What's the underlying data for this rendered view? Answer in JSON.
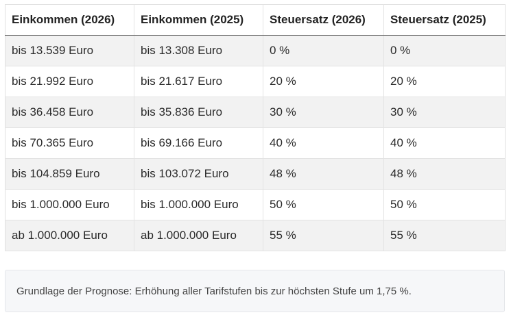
{
  "table": {
    "headers": [
      "Einkommen (2026)",
      "Einkommen (2025)",
      "Steuersatz (2026)",
      "Steuersatz (2025)"
    ],
    "rows": [
      [
        "bis 13.539 Euro",
        "bis 13.308 Euro",
        "0 %",
        "0 %"
      ],
      [
        "bis 21.992 Euro",
        "bis 21.617 Euro",
        "20 %",
        "20 %"
      ],
      [
        "bis 36.458 Euro",
        "bis 35.836 Euro",
        "30 %",
        "30 %"
      ],
      [
        "bis 70.365 Euro",
        "bis 69.166 Euro",
        "40 %",
        "40 %"
      ],
      [
        "bis 104.859 Euro",
        "bis 103.072 Euro",
        "48 %",
        "48 %"
      ],
      [
        "bis 1.000.000 Euro",
        "bis 1.000.000 Euro",
        "50 %",
        "50 %"
      ],
      [
        "ab 1.000.000 Euro",
        "ab 1.000.000 Euro",
        "55 %",
        "55 %"
      ]
    ]
  },
  "note": {
    "text": "Grundlage der Prognose: Erhöhung aller Tarifstufen bis zur höchsten Stufe um 1,75 %."
  },
  "colors": {
    "header_rule": "#555555",
    "stripe": "#f2f2f2",
    "note_background": "#f6f7f9"
  }
}
